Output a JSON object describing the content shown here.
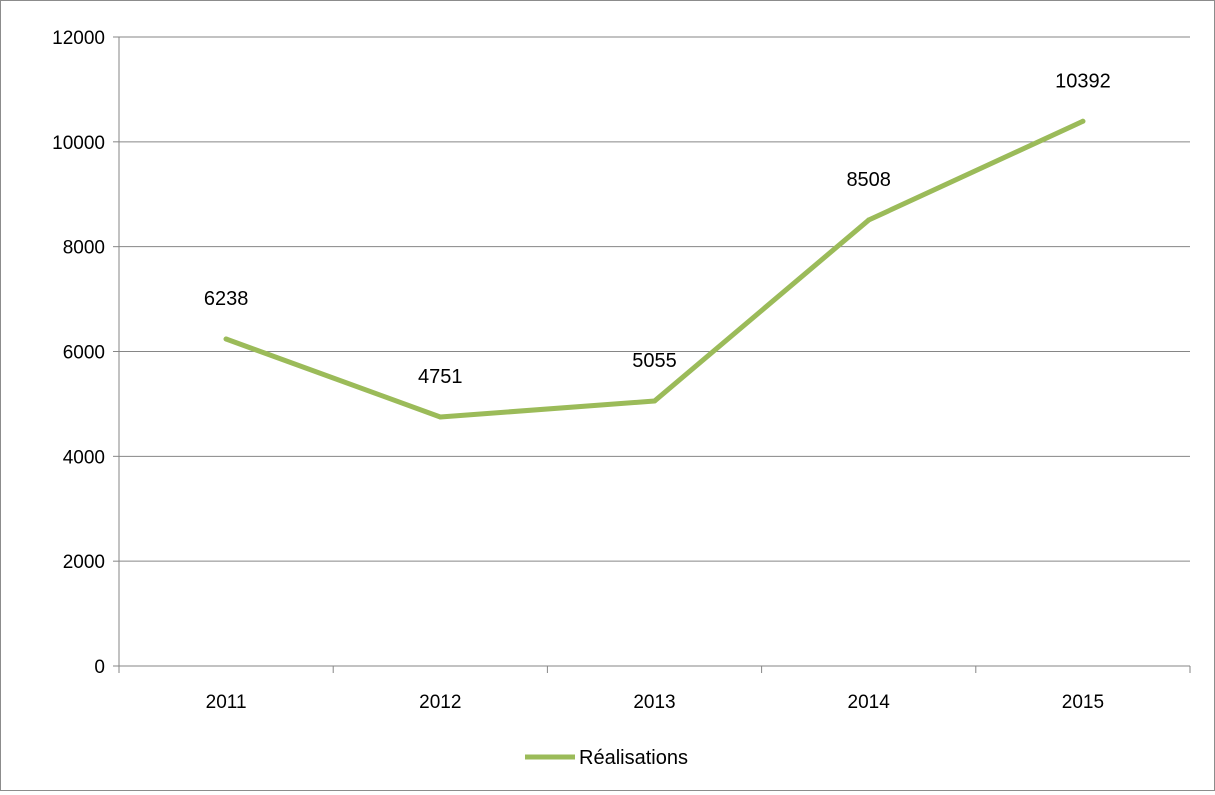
{
  "chart_data": {
    "type": "line",
    "categories": [
      "2011",
      "2012",
      "2013",
      "2014",
      "2015"
    ],
    "series": [
      {
        "name": "Réalisations",
        "values": [
          6238,
          4751,
          5055,
          8508,
          10392
        ]
      }
    ],
    "data_labels": [
      "6238",
      "4751",
      "5055",
      "8508",
      "10392"
    ],
    "ylim": [
      0,
      12000
    ],
    "yticks": [
      "0",
      "2000",
      "4000",
      "6000",
      "8000",
      "10000",
      "12000"
    ],
    "grid": "horizontal",
    "legend_position": "bottom",
    "colors": {
      "series": "#9bbb59",
      "grid": "#868686",
      "axis": "#868686"
    }
  }
}
